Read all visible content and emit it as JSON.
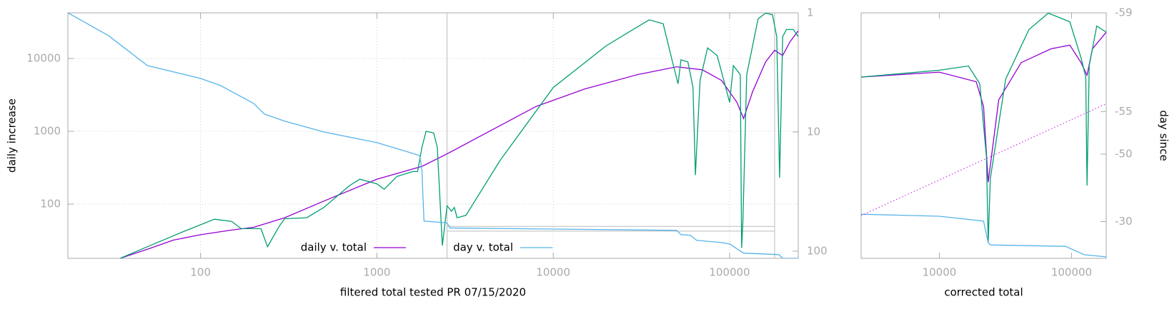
{
  "chart_data": [
    {
      "type": "line",
      "xlabel": "filtered total tested PR 07/15/2020",
      "ylabel": "daily increase",
      "xscale": "log",
      "yscale": "log",
      "y2scale": "log",
      "xlim": [
        17.7,
        245000
      ],
      "ylim": [
        18,
        42400
      ],
      "y2lim": [
        115,
        1
      ],
      "xticks": [
        100,
        1000,
        10000,
        100000
      ],
      "yticks": [
        100,
        1000,
        10000
      ],
      "y2ticks": [
        1,
        10,
        100
      ],
      "grid": true,
      "legend": "bottom center",
      "reference_x": [
        2500,
        180000
      ],
      "reference_y2": [
        62,
        68
      ],
      "series": [
        {
          "name": "daily v. total",
          "color": "#9400d3",
          "x": [
            35,
            50,
            70,
            100,
            150,
            200,
            300,
            500,
            1000,
            1800,
            2500,
            4000,
            8000,
            15000,
            30000,
            50000,
            70000,
            90000,
            110000,
            120000,
            135000,
            160000,
            180000,
            200000,
            220000,
            245000
          ],
          "values": [
            18,
            24,
            32,
            38,
            44,
            48,
            65,
            110,
            220,
            330,
            490,
            900,
            2200,
            3800,
            6000,
            7700,
            7000,
            5000,
            2500,
            1500,
            3500,
            9000,
            13000,
            11000,
            17000,
            24000
          ]
        },
        {
          "color": "#009e73",
          "x": [
            35,
            50,
            80,
            120,
            150,
            170,
            220,
            240,
            280,
            300,
            400,
            500,
            700,
            800,
            1000,
            1100,
            1300,
            1600,
            1700,
            1800,
            1900,
            2100,
            2200,
            2350,
            2500,
            2650,
            2750,
            2850,
            3200,
            5000,
            10000,
            20000,
            35000,
            42000,
            48000,
            51000,
            53000,
            58000,
            62000,
            64000,
            68000,
            75000,
            85000,
            95000,
            100000,
            105000,
            115000,
            117000,
            119000,
            125000,
            145000,
            160000,
            175000,
            185000,
            192000,
            200000,
            210000,
            230000,
            245000
          ],
          "values": [
            18,
            26,
            42,
            62,
            58,
            46,
            46,
            26,
            50,
            63,
            65,
            90,
            180,
            220,
            190,
            160,
            240,
            280,
            280,
            600,
            1000,
            950,
            600,
            27,
            95,
            80,
            90,
            65,
            70,
            400,
            4000,
            15000,
            34000,
            30000,
            8000,
            4500,
            9600,
            9000,
            4000,
            250,
            5000,
            14000,
            11000,
            4000,
            2500,
            8000,
            6000,
            25,
            60,
            6000,
            35000,
            42000,
            40000,
            20000,
            230,
            20000,
            25000,
            25000,
            20000
          ]
        },
        {
          "name": "day v. total",
          "color": "#56b4e9",
          "axis": "y2",
          "x": [
            17.7,
            30,
            50,
            100,
            130,
            200,
            230,
            300,
            500,
            1000,
            1500,
            1750,
            1800,
            1850,
            2500,
            2600,
            50000,
            53000,
            60000,
            65000,
            90000,
            100000,
            120000,
            190000,
            200000,
            245000
          ],
          "values": [
            1,
            1.55,
            2.77,
            3.55,
            4.08,
            5.76,
            7.07,
            8.1,
            10,
            12.3,
            14.7,
            15.8,
            21,
            56,
            58,
            64,
            67,
            72.6,
            73.7,
            81.2,
            84.8,
            87.1,
            104,
            107,
            115,
            115
          ]
        }
      ]
    },
    {
      "type": "line",
      "xlabel": "corrected total",
      "y2label": "day since",
      "xscale": "log",
      "yscale": "log",
      "y2scale": "log",
      "y2_log_offset": 60,
      "xlim": [
        2560,
        183000
      ],
      "ylim": [
        18,
        42400
      ],
      "y2lim": [
        -5.4,
        -59
      ],
      "xticks": [
        10000,
        100000
      ],
      "y2ticks": [
        -59,
        -55,
        -50,
        -30
      ],
      "grid": false,
      "series": [
        {
          "color": "#9400d3",
          "x": [
            2560,
            10000,
            19000,
            21600,
            23400,
            28100,
            41600,
            70000,
            97000,
            118000,
            131000,
            144000,
            183000
          ],
          "values": [
            5560,
            6500,
            4800,
            2200,
            200,
            2700,
            8800,
            13600,
            15300,
            8800,
            5900,
            13600,
            23000
          ]
        },
        {
          "color": "#009e73",
          "x": [
            2560,
            10000,
            16600,
            20200,
            22700,
            23400,
            24300,
            31700,
            47600,
            66700,
            97000,
            118000,
            128000,
            131000,
            136000,
            155000,
            183000
          ],
          "values": [
            5560,
            6900,
            7900,
            4500,
            450,
            30,
            225,
            5200,
            25000,
            42000,
            32000,
            10200,
            5600,
            180,
            8000,
            28000,
            23000
          ]
        },
        {
          "color": "#56b4e9",
          "axis": "y2",
          "x": [
            2560,
            10000,
            21600,
            23400,
            24300,
            90000,
            125000,
            183000
          ],
          "values": [
            -33.4,
            -32.5,
            -30.2,
            -17.7,
            -16.1,
            -15.1,
            -8.5,
            -6.7
          ]
        },
        {
          "color": "#d040e8",
          "axis": "y2",
          "style": "dotted",
          "x": [
            2560,
            183000
          ],
          "values": [
            -32.8,
            -55.6
          ]
        }
      ]
    }
  ]
}
